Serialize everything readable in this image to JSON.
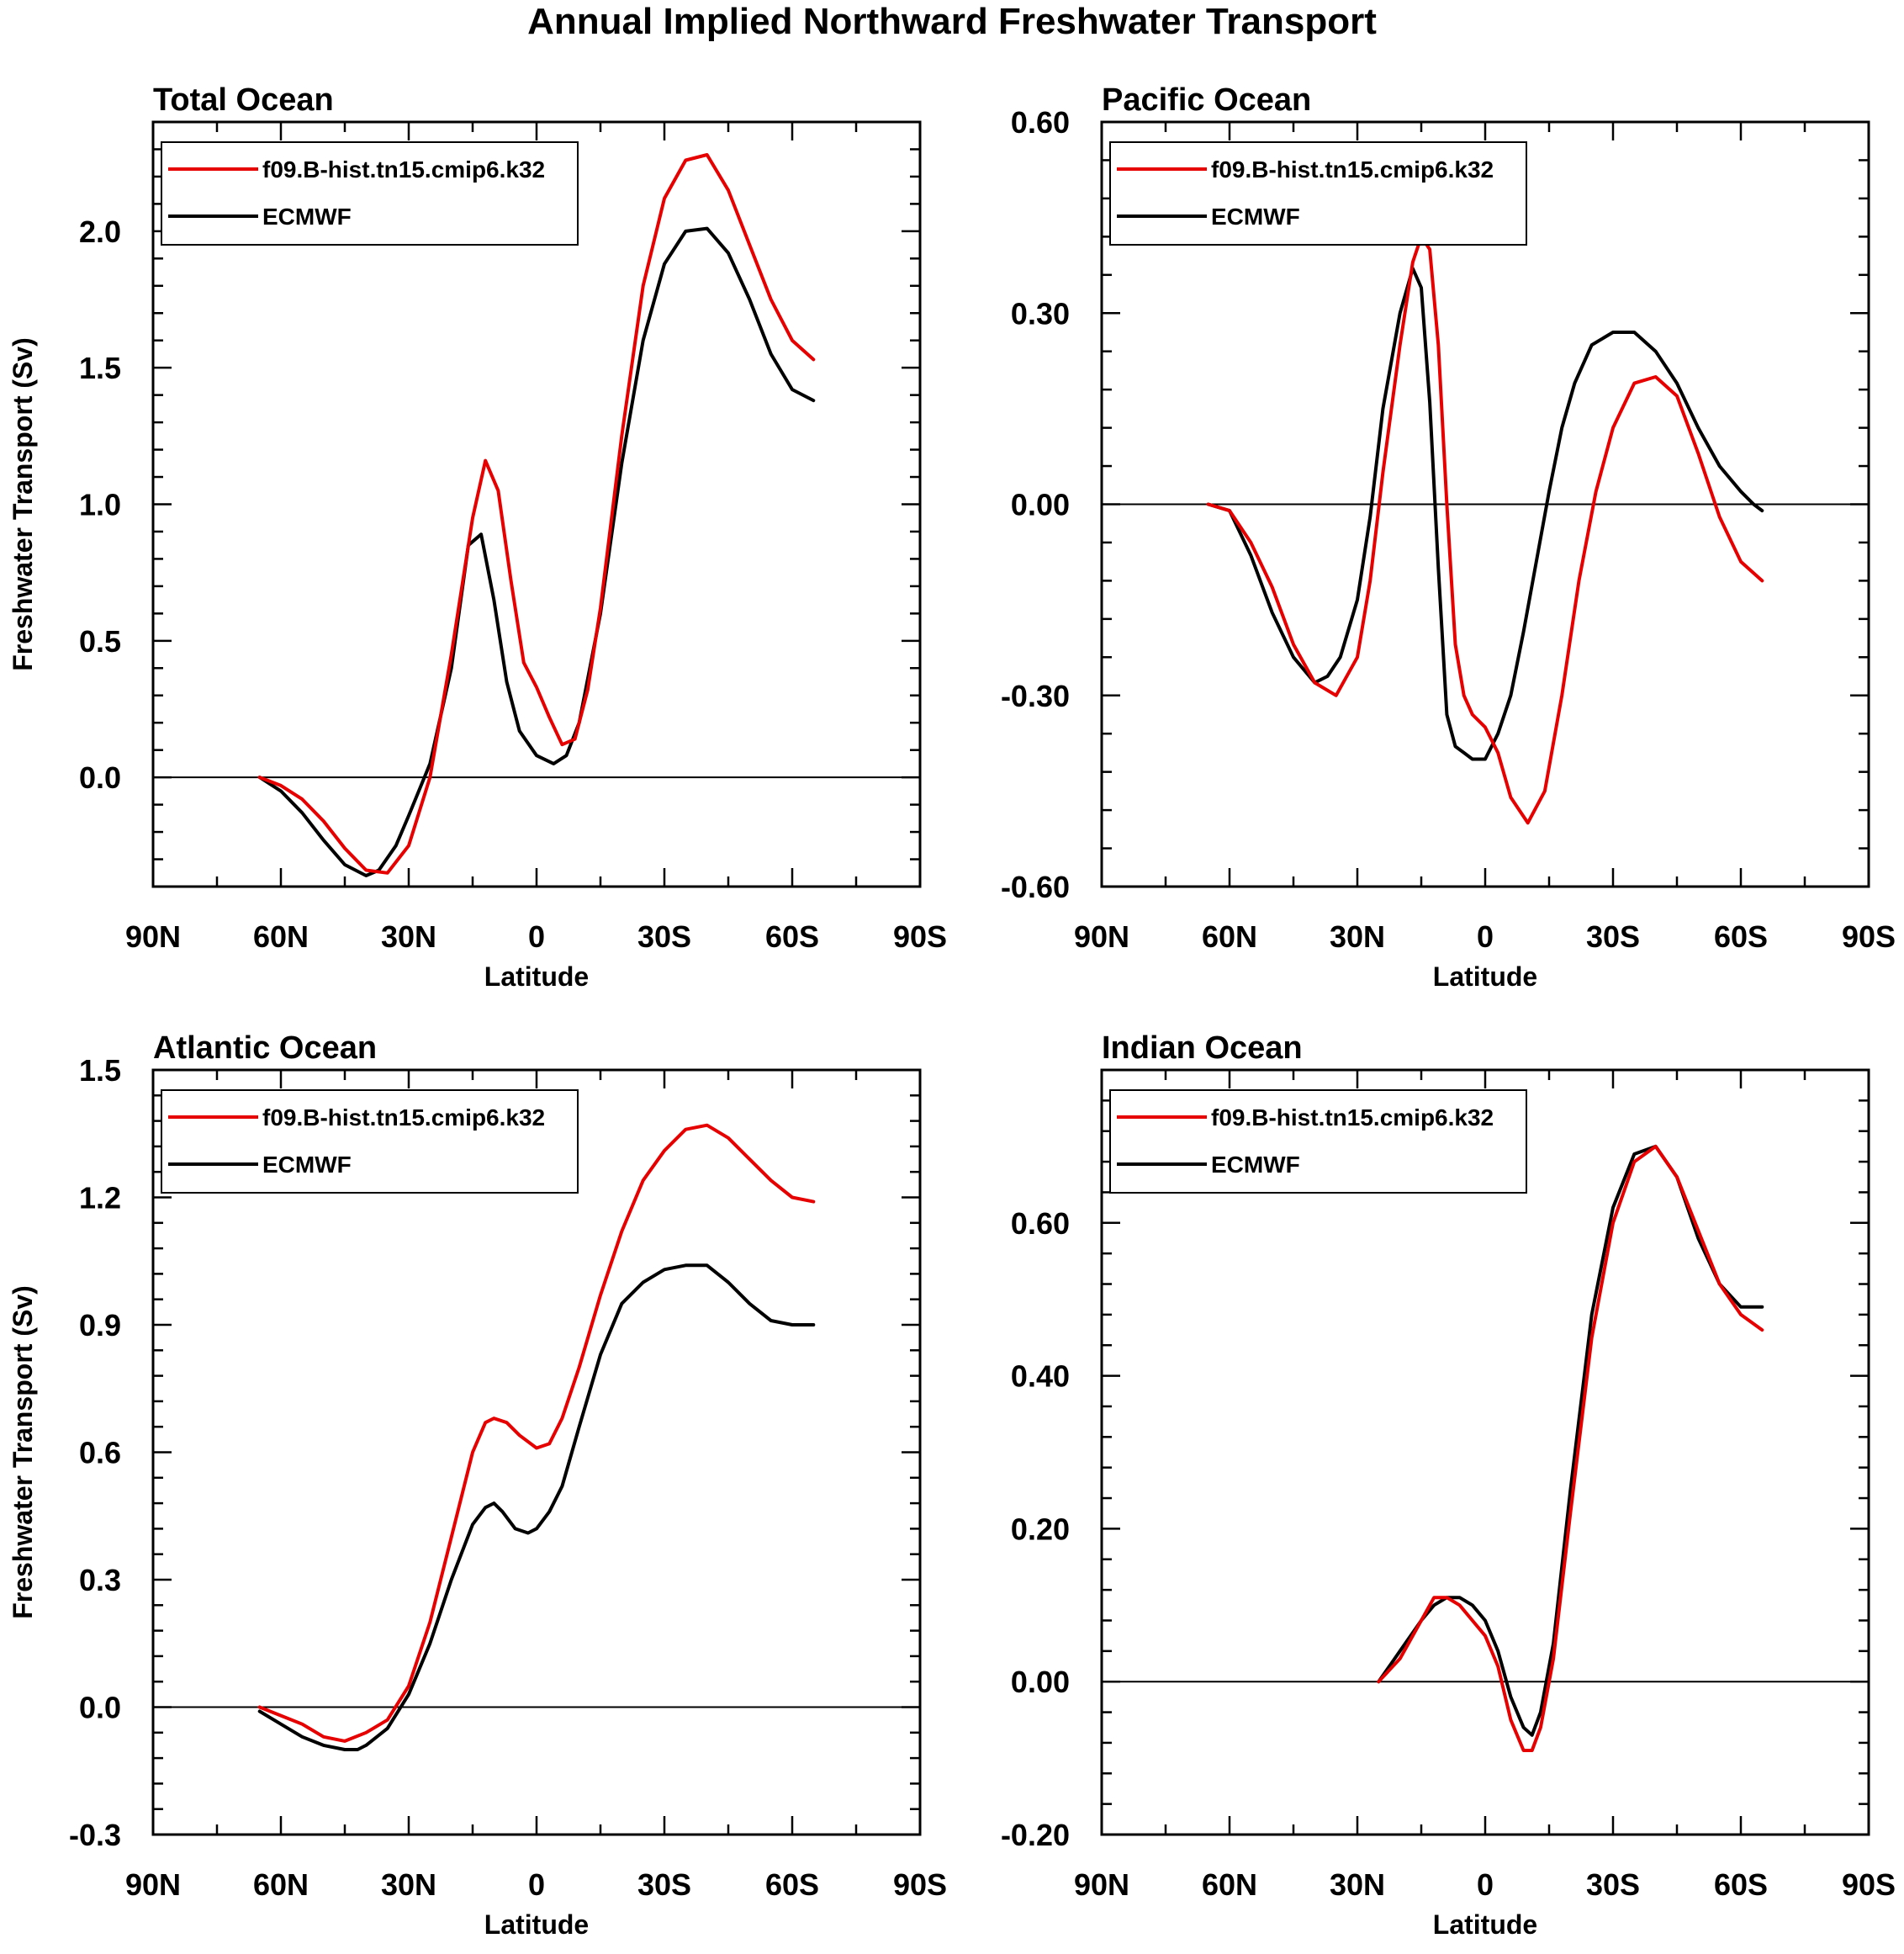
{
  "figure": {
    "title": "Annual Implied Northward Freshwater Transport"
  },
  "colors": {
    "model": "#e60000",
    "obs": "#000000",
    "zero_line": "#000000"
  },
  "chart_data": [
    {
      "type": "line",
      "title": "Total Ocean",
      "xlabel": "Latitude",
      "ylabel": "Freshwater Transport (Sv)",
      "xlim": [
        -90,
        90
      ],
      "x_ticks": [
        -90,
        -60,
        -30,
        0,
        30,
        60,
        90
      ],
      "x_tick_labels": [
        "90N",
        "60N",
        "30N",
        "0",
        "30S",
        "60S",
        "90S"
      ],
      "ylim": [
        -0.4,
        2.4
      ],
      "y_ticks": [
        0.0,
        0.5,
        1.0,
        1.5,
        2.0
      ],
      "y_tick_labels": [
        "0.0",
        "0.5",
        "1.0",
        "1.5",
        "2.0"
      ],
      "zero_line": true,
      "legend": "top-left",
      "series": [
        {
          "name": "f09.B-hist.tn15.cmip6.k32",
          "color": "#e60000",
          "x": [
            -65,
            -60,
            -55,
            -50,
            -45,
            -40,
            -35,
            -30,
            -25,
            -20,
            -15,
            -12,
            -9,
            -6,
            -3,
            0,
            3,
            6,
            9,
            12,
            15,
            20,
            25,
            30,
            35,
            40,
            45,
            50,
            55,
            60,
            65
          ],
          "y": [
            0.0,
            -0.03,
            -0.08,
            -0.16,
            -0.26,
            -0.34,
            -0.35,
            -0.25,
            0.0,
            0.45,
            0.95,
            1.16,
            1.05,
            0.72,
            0.42,
            0.33,
            0.22,
            0.12,
            0.14,
            0.32,
            0.62,
            1.25,
            1.8,
            2.12,
            2.26,
            2.28,
            2.15,
            1.95,
            1.75,
            1.6,
            1.53
          ]
        },
        {
          "name": "ECMWF",
          "color": "#000000",
          "x": [
            -65,
            -60,
            -55,
            -50,
            -45,
            -40,
            -37,
            -33,
            -30,
            -25,
            -20,
            -16,
            -13,
            -10,
            -7,
            -4,
            0,
            4,
            7,
            10,
            15,
            20,
            25,
            30,
            35,
            40,
            45,
            50,
            55,
            60,
            65
          ],
          "y": [
            0.0,
            -0.05,
            -0.13,
            -0.23,
            -0.32,
            -0.36,
            -0.34,
            -0.25,
            -0.14,
            0.05,
            0.4,
            0.85,
            0.89,
            0.65,
            0.35,
            0.17,
            0.08,
            0.05,
            0.08,
            0.2,
            0.6,
            1.15,
            1.6,
            1.88,
            2.0,
            2.01,
            1.92,
            1.75,
            1.55,
            1.42,
            1.38
          ]
        }
      ]
    },
    {
      "type": "line",
      "title": "Pacific Ocean",
      "xlabel": "Latitude",
      "ylabel": "",
      "xlim": [
        -90,
        90
      ],
      "x_ticks": [
        -90,
        -60,
        -30,
        0,
        30,
        60,
        90
      ],
      "x_tick_labels": [
        "90N",
        "60N",
        "30N",
        "0",
        "30S",
        "60S",
        "90S"
      ],
      "ylim": [
        -0.6,
        0.6
      ],
      "y_ticks": [
        -0.6,
        -0.3,
        0.0,
        0.3,
        0.6
      ],
      "y_tick_labels": [
        "-0.60",
        "-0.30",
        "0.00",
        "0.30",
        "0.60"
      ],
      "zero_line": true,
      "legend": "top-left",
      "series": [
        {
          "name": "f09.B-hist.tn15.cmip6.k32",
          "color": "#e60000",
          "x": [
            -65,
            -60,
            -55,
            -50,
            -45,
            -40,
            -35,
            -30,
            -27,
            -24,
            -20,
            -17,
            -15,
            -13,
            -11,
            -9,
            -7,
            -5,
            -3,
            0,
            3,
            6,
            10,
            14,
            18,
            22,
            26,
            30,
            35,
            40,
            45,
            50,
            55,
            60,
            65
          ],
          "y": [
            0.0,
            -0.01,
            -0.06,
            -0.13,
            -0.22,
            -0.28,
            -0.3,
            -0.24,
            -0.12,
            0.05,
            0.25,
            0.38,
            0.42,
            0.4,
            0.25,
            0.0,
            -0.22,
            -0.3,
            -0.33,
            -0.35,
            -0.39,
            -0.46,
            -0.5,
            -0.45,
            -0.3,
            -0.12,
            0.02,
            0.12,
            0.19,
            0.2,
            0.17,
            0.08,
            -0.02,
            -0.09,
            -0.12
          ]
        },
        {
          "name": "ECMWF",
          "color": "#000000",
          "x": [
            -65,
            -60,
            -55,
            -50,
            -45,
            -40,
            -37,
            -34,
            -30,
            -27,
            -24,
            -20,
            -17,
            -15,
            -13,
            -11,
            -9,
            -7,
            -5,
            -3,
            0,
            3,
            6,
            9,
            12,
            15,
            18,
            21,
            25,
            30,
            35,
            40,
            45,
            50,
            55,
            60,
            63,
            65
          ],
          "y": [
            0.0,
            -0.01,
            -0.08,
            -0.17,
            -0.24,
            -0.28,
            -0.27,
            -0.24,
            -0.15,
            -0.02,
            0.15,
            0.3,
            0.37,
            0.34,
            0.16,
            -0.1,
            -0.33,
            -0.38,
            -0.39,
            -0.4,
            -0.4,
            -0.36,
            -0.3,
            -0.2,
            -0.09,
            0.02,
            0.12,
            0.19,
            0.25,
            0.27,
            0.27,
            0.24,
            0.19,
            0.12,
            0.06,
            0.02,
            0.0,
            -0.01
          ]
        }
      ]
    },
    {
      "type": "line",
      "title": "Atlantic Ocean",
      "xlabel": "Latitude",
      "ylabel": "Freshwater Transport (Sv)",
      "xlim": [
        -90,
        90
      ],
      "x_ticks": [
        -90,
        -60,
        -30,
        0,
        30,
        60,
        90
      ],
      "x_tick_labels": [
        "90N",
        "60N",
        "30N",
        "0",
        "30S",
        "60S",
        "90S"
      ],
      "ylim": [
        -0.3,
        1.5
      ],
      "y_ticks": [
        -0.3,
        0.0,
        0.3,
        0.6,
        0.9,
        1.2,
        1.5
      ],
      "y_tick_labels": [
        "-0.3",
        "0.0",
        "0.3",
        "0.6",
        "0.9",
        "1.2",
        "1.5"
      ],
      "zero_line": true,
      "legend": "top-left",
      "series": [
        {
          "name": "f09.B-hist.tn15.cmip6.k32",
          "color": "#e60000",
          "x": [
            -65,
            -60,
            -55,
            -50,
            -45,
            -40,
            -35,
            -30,
            -25,
            -20,
            -15,
            -12,
            -10,
            -7,
            -4,
            0,
            3,
            6,
            10,
            15,
            20,
            25,
            30,
            35,
            40,
            45,
            50,
            55,
            60,
            65
          ],
          "y": [
            0.0,
            -0.02,
            -0.04,
            -0.07,
            -0.08,
            -0.06,
            -0.03,
            0.05,
            0.2,
            0.4,
            0.6,
            0.67,
            0.68,
            0.67,
            0.64,
            0.61,
            0.62,
            0.68,
            0.8,
            0.97,
            1.12,
            1.24,
            1.31,
            1.36,
            1.37,
            1.34,
            1.29,
            1.24,
            1.2,
            1.19
          ]
        },
        {
          "name": "ECMWF",
          "color": "#000000",
          "x": [
            -65,
            -60,
            -55,
            -50,
            -45,
            -42,
            -40,
            -35,
            -30,
            -25,
            -20,
            -15,
            -12,
            -10,
            -8,
            -5,
            -2,
            0,
            3,
            6,
            10,
            15,
            20,
            25,
            30,
            35,
            40,
            45,
            50,
            55,
            60,
            65
          ],
          "y": [
            -0.01,
            -0.04,
            -0.07,
            -0.09,
            -0.1,
            -0.1,
            -0.09,
            -0.05,
            0.03,
            0.15,
            0.3,
            0.43,
            0.47,
            0.48,
            0.46,
            0.42,
            0.41,
            0.42,
            0.46,
            0.52,
            0.66,
            0.83,
            0.95,
            1.0,
            1.03,
            1.04,
            1.04,
            1.0,
            0.95,
            0.91,
            0.9,
            0.9
          ]
        }
      ]
    },
    {
      "type": "line",
      "title": "Indian Ocean",
      "xlabel": "Latitude",
      "ylabel": "",
      "xlim": [
        -90,
        90
      ],
      "x_ticks": [
        -90,
        -60,
        -30,
        0,
        30,
        60,
        90
      ],
      "x_tick_labels": [
        "90N",
        "60N",
        "30N",
        "0",
        "30S",
        "60S",
        "90S"
      ],
      "ylim": [
        -0.2,
        0.8
      ],
      "y_ticks": [
        -0.2,
        0.0,
        0.2,
        0.4,
        0.6
      ],
      "y_tick_labels": [
        "-0.20",
        "0.00",
        "0.20",
        "0.40",
        "0.60"
      ],
      "zero_line": true,
      "legend": "top-left",
      "series": [
        {
          "name": "f09.B-hist.tn15.cmip6.k32",
          "color": "#e60000",
          "x": [
            -25,
            -20,
            -15,
            -12,
            -9,
            -6,
            -3,
            0,
            3,
            6,
            9,
            11,
            13,
            16,
            20,
            25,
            30,
            35,
            40,
            45,
            50,
            55,
            60,
            65
          ],
          "y": [
            0.0,
            0.03,
            0.08,
            0.11,
            0.11,
            0.1,
            0.08,
            0.06,
            0.02,
            -0.05,
            -0.09,
            -0.09,
            -0.06,
            0.03,
            0.22,
            0.45,
            0.6,
            0.68,
            0.7,
            0.66,
            0.59,
            0.52,
            0.48,
            0.46
          ]
        },
        {
          "name": "ECMWF",
          "color": "#000000",
          "x": [
            -25,
            -20,
            -15,
            -12,
            -9,
            -6,
            -3,
            0,
            3,
            6,
            9,
            11,
            13,
            16,
            20,
            25,
            30,
            35,
            40,
            45,
            50,
            55,
            60,
            65
          ],
          "y": [
            0.0,
            0.04,
            0.08,
            0.1,
            0.11,
            0.11,
            0.1,
            0.08,
            0.04,
            -0.02,
            -0.06,
            -0.07,
            -0.04,
            0.05,
            0.25,
            0.48,
            0.62,
            0.69,
            0.7,
            0.66,
            0.58,
            0.52,
            0.49,
            0.49
          ]
        }
      ]
    }
  ]
}
